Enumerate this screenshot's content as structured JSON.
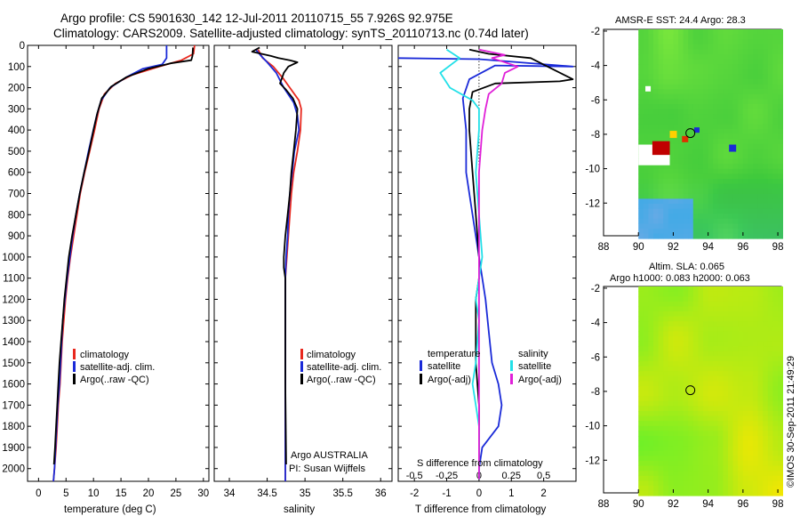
{
  "page": {
    "title_line1": "Argo profile: CS 5901630_142 12-Jul-2011 20110715_55 7.926S 92.975E",
    "title_line2": "Climatology: CARS2009. Satellite-adjusted climatology: synTS_20110713.nc (0.74d later)",
    "stamp": "©IMOS 30-Sep-2011 21:49:29"
  },
  "colors": {
    "climatology": "#e8281e",
    "satellite": "#1a2ad8",
    "argo": "#000000",
    "cyan": "#22e0e8",
    "magenta": "#e020d8"
  },
  "chart_data": [
    {
      "type": "line",
      "name": "temperature",
      "xlabel": "temperature (deg C)",
      "xlim": [
        -2,
        31
      ],
      "ylim": [
        2060,
        0
      ],
      "xticks": [
        0,
        5,
        10,
        15,
        20,
        25,
        30
      ],
      "yticks": [
        0,
        100,
        200,
        300,
        400,
        500,
        600,
        700,
        800,
        900,
        1000,
        1100,
        1200,
        1300,
        1400,
        1500,
        1600,
        1700,
        1800,
        1900,
        2000
      ],
      "legend": [
        "climatology",
        "satellite-adj. clim.",
        "Argo(..raw -QC)"
      ],
      "series": [
        {
          "name": "climatology",
          "color": "#e8281e",
          "points": [
            [
              28.4,
              0
            ],
            [
              28.2,
              40
            ],
            [
              26,
              70
            ],
            [
              22,
              100
            ],
            [
              17,
              140
            ],
            [
              14,
              180
            ],
            [
              12,
              230
            ],
            [
              11,
              300
            ],
            [
              10.2,
              400
            ],
            [
              9.3,
              500
            ],
            [
              8.4,
              600
            ],
            [
              7.6,
              700
            ],
            [
              7,
              800
            ],
            [
              6.4,
              900
            ],
            [
              5.8,
              1000
            ],
            [
              5.3,
              1100
            ],
            [
              4.9,
              1200
            ],
            [
              4.6,
              1300
            ],
            [
              4.3,
              1400
            ],
            [
              4.1,
              1500
            ],
            [
              3.9,
              1600
            ],
            [
              3.6,
              1700
            ],
            [
              3.4,
              1800
            ],
            [
              3.2,
              1900
            ],
            [
              2.9,
              2000
            ],
            [
              2.7,
              2060
            ]
          ]
        },
        {
          "name": "satellite-adj. clim.",
          "color": "#1a2ad8",
          "points": [
            [
              23.3,
              0
            ],
            [
              23.3,
              60
            ],
            [
              22.5,
              90
            ],
            [
              19,
              110
            ],
            [
              16,
              150
            ],
            [
              13,
              200
            ],
            [
              11.4,
              260
            ],
            [
              10.6,
              330
            ],
            [
              9.8,
              420
            ],
            [
              9.1,
              500
            ],
            [
              8.3,
              600
            ],
            [
              7.5,
              700
            ],
            [
              6.8,
              800
            ],
            [
              6.2,
              900
            ],
            [
              5.7,
              1000
            ],
            [
              5.2,
              1100
            ],
            [
              4.8,
              1200
            ],
            [
              4.4,
              1300
            ],
            [
              4.2,
              1400
            ],
            [
              4,
              1500
            ],
            [
              3.8,
              1600
            ],
            [
              3.5,
              1700
            ],
            [
              3.3,
              1800
            ],
            [
              3.1,
              1900
            ],
            [
              2.9,
              2000
            ],
            [
              2.7,
              2060
            ]
          ]
        },
        {
          "name": "Argo(..raw -QC)",
          "color": "#000000",
          "points": [
            [
              28.1,
              10
            ],
            [
              28,
              50
            ],
            [
              27.8,
              70
            ],
            [
              24,
              85
            ],
            [
              20,
              110
            ],
            [
              16,
              150
            ],
            [
              13.2,
              195
            ],
            [
              11.5,
              250
            ],
            [
              10.7,
              320
            ],
            [
              10,
              400
            ],
            [
              9.2,
              500
            ],
            [
              8.3,
              600
            ],
            [
              7.5,
              700
            ],
            [
              6.8,
              800
            ],
            [
              6.1,
              900
            ],
            [
              5.5,
              1000
            ],
            [
              5.1,
              1100
            ],
            [
              4.7,
              1200
            ],
            [
              4.4,
              1300
            ],
            [
              4.1,
              1400
            ],
            [
              3.8,
              1500
            ],
            [
              3.6,
              1600
            ],
            [
              3.4,
              1700
            ],
            [
              3.2,
              1800
            ],
            [
              3,
              1900
            ],
            [
              2.8,
              1980
            ]
          ]
        }
      ]
    },
    {
      "type": "line",
      "name": "salinity",
      "xlabel": "salinity",
      "xlim": [
        33.8,
        36.15
      ],
      "ylim": [
        2060,
        0
      ],
      "xticks": [
        34,
        34.5,
        35,
        35.5,
        36
      ],
      "legend": [
        "climatology",
        "satellite-adj. clim.",
        "Argo(..raw -QC)"
      ],
      "annotation": [
        "Argo AUSTRALIA",
        "PI: Susan Wijffels"
      ],
      "series": [
        {
          "name": "climatology",
          "color": "#e8281e",
          "points": [
            [
              34.38,
              20
            ],
            [
              34.44,
              60
            ],
            [
              34.58,
              100
            ],
            [
              34.72,
              160
            ],
            [
              34.8,
              200
            ],
            [
              34.92,
              260
            ],
            [
              34.95,
              300
            ],
            [
              34.94,
              400
            ],
            [
              34.9,
              500
            ],
            [
              34.85,
              600
            ],
            [
              34.82,
              700
            ],
            [
              34.8,
              800
            ],
            [
              34.78,
              900
            ],
            [
              34.76,
              1000
            ],
            [
              34.74,
              1100
            ],
            [
              34.74,
              1200
            ],
            [
              34.74,
              1400
            ],
            [
              34.74,
              1600
            ],
            [
              34.74,
              1800
            ],
            [
              34.74,
              2060
            ]
          ]
        },
        {
          "name": "satellite-adj. clim.",
          "color": "#1a2ad8",
          "points": [
            [
              34.35,
              20
            ],
            [
              34.42,
              50
            ],
            [
              34.5,
              80
            ],
            [
              34.62,
              130
            ],
            [
              34.72,
              200
            ],
            [
              34.85,
              270
            ],
            [
              34.9,
              330
            ],
            [
              34.92,
              400
            ],
            [
              34.86,
              500
            ],
            [
              34.83,
              600
            ],
            [
              34.8,
              700
            ],
            [
              34.78,
              800
            ],
            [
              34.77,
              900
            ],
            [
              34.75,
              1000
            ],
            [
              34.74,
              1100
            ],
            [
              34.74,
              1300
            ],
            [
              34.74,
              1600
            ],
            [
              34.74,
              2060
            ]
          ]
        },
        {
          "name": "Argo(..raw -QC)",
          "color": "#000000",
          "points": [
            [
              34.4,
              10
            ],
            [
              34.3,
              30
            ],
            [
              34.55,
              50
            ],
            [
              34.65,
              60
            ],
            [
              34.8,
              70
            ],
            [
              34.9,
              80
            ],
            [
              34.78,
              100
            ],
            [
              34.72,
              130
            ],
            [
              34.67,
              180
            ],
            [
              34.75,
              210
            ],
            [
              34.84,
              250
            ],
            [
              34.9,
              300
            ],
            [
              34.88,
              400
            ],
            [
              34.85,
              500
            ],
            [
              34.82,
              600
            ],
            [
              34.8,
              700
            ],
            [
              34.77,
              800
            ],
            [
              34.74,
              900
            ],
            [
              34.72,
              1000
            ],
            [
              34.72,
              1050
            ],
            [
              34.74,
              1100
            ],
            [
              34.74,
              1300
            ],
            [
              34.74,
              1600
            ],
            [
              34.75,
              1980
            ]
          ]
        }
      ]
    },
    {
      "type": "line",
      "name": "difference",
      "xlabel": "T difference from climatology",
      "xlabel_top": "S difference from climatology",
      "xlim": [
        -2.5,
        3
      ],
      "ylim": [
        2060,
        0
      ],
      "xticks": [
        -2,
        -1,
        0,
        1,
        2
      ],
      "xticks_s": [
        [
          "-0.5",
          -2
        ],
        [
          "-0.25",
          -1
        ],
        [
          "0",
          0
        ],
        [
          "0.25",
          1
        ],
        [
          "0.5",
          2
        ]
      ],
      "legend_left_title": "temperature",
      "legend_right_title": "salinity",
      "legend_left": [
        "satellite",
        "Argo(-adj)"
      ],
      "legend_right": [
        "satellite",
        "Argo(-adj)"
      ],
      "series": [
        {
          "name": "temperature satellite",
          "color": "#1a2ad8",
          "points": [
            [
              -2.5,
              60
            ],
            [
              0,
              65
            ],
            [
              2.9,
              100
            ],
            [
              0.5,
              95
            ],
            [
              -0.3,
              160
            ],
            [
              -0.5,
              250
            ],
            [
              -0.4,
              400
            ],
            [
              -0.4,
              600
            ],
            [
              -0.2,
              800
            ],
            [
              0,
              1000
            ],
            [
              0.2,
              1200
            ],
            [
              0.3,
              1350
            ],
            [
              0.4,
              1500
            ],
            [
              0.6,
              1600
            ],
            [
              0.7,
              1700
            ],
            [
              0.6,
              1800
            ],
            [
              0.1,
              1900
            ],
            [
              0,
              2000
            ],
            [
              0,
              2050
            ]
          ]
        },
        {
          "name": "temperature Argo(-adj)",
          "color": "#000000",
          "points": [
            [
              -0.3,
              20
            ],
            [
              0.3,
              40
            ],
            [
              1.6,
              60
            ],
            [
              2.9,
              160
            ],
            [
              2.5,
              170
            ],
            [
              0.5,
              180
            ],
            [
              -0.2,
              220
            ],
            [
              -0.3,
              300
            ],
            [
              -0.3,
              400
            ],
            [
              -0.2,
              600
            ],
            [
              -0.1,
              800
            ],
            [
              0,
              1000
            ],
            [
              0,
              1100
            ],
            [
              -0.1,
              1200
            ],
            [
              -0.1,
              1300
            ],
            [
              -0.1,
              1500
            ],
            [
              0,
              1700
            ],
            [
              0,
              1900
            ],
            [
              0,
              2050
            ]
          ]
        },
        {
          "name": "salinity satellite",
          "color": "#22e0e8",
          "points": [
            [
              -1,
              20
            ],
            [
              -0.8,
              40
            ],
            [
              -0.6,
              60
            ],
            [
              -1.2,
              130
            ],
            [
              -0.9,
              200
            ],
            [
              -0.2,
              260
            ],
            [
              0,
              300
            ],
            [
              0,
              400
            ],
            [
              -0.1,
              600
            ],
            [
              0,
              800
            ],
            [
              0.1,
              1000
            ],
            [
              -0.1,
              1200
            ],
            [
              0,
              1300
            ],
            [
              -0.1,
              1500
            ],
            [
              -0.2,
              1600
            ],
            [
              -0.1,
              1700
            ],
            [
              0,
              1800
            ],
            [
              0,
              2050
            ]
          ]
        },
        {
          "name": "salinity Argo(-adj)",
          "color": "#e020d8",
          "points": [
            [
              0,
              20
            ],
            [
              0.8,
              45
            ],
            [
              0.4,
              60
            ],
            [
              1.2,
              100
            ],
            [
              0.8,
              130
            ],
            [
              0.7,
              180
            ],
            [
              0.3,
              230
            ],
            [
              0.2,
              300
            ],
            [
              0.1,
              400
            ],
            [
              0,
              600
            ],
            [
              0,
              900
            ],
            [
              0,
              1100
            ],
            [
              0,
              1300
            ],
            [
              0,
              1500
            ],
            [
              0,
              1700
            ],
            [
              0,
              2050
            ]
          ]
        }
      ]
    },
    {
      "type": "heatmap",
      "name": "sst_map",
      "title": "AMSR-E SST: 24.4  Argo: 28.3",
      "xticks": [
        88,
        90,
        92,
        94,
        96,
        98
      ],
      "yticks": [
        -2,
        -4,
        -6,
        -8,
        -10,
        -12
      ],
      "xlim": [
        88,
        98.2
      ],
      "ylim": [
        -13.9,
        -1.9
      ],
      "argo_position": [
        92.98,
        -7.93
      ]
    },
    {
      "type": "heatmap",
      "name": "sla_map",
      "title_line1": "Altim. SLA: 0.065",
      "title_line2": "Argo h1000: 0.083 h2000: 0.063",
      "xticks": [
        88,
        90,
        92,
        94,
        96,
        98
      ],
      "yticks": [
        -2,
        -4,
        -6,
        -8,
        -10,
        -12
      ],
      "xlim": [
        88,
        98.2
      ],
      "ylim": [
        -13.9,
        -1.9
      ],
      "argo_position": [
        92.98,
        -7.93
      ]
    }
  ]
}
